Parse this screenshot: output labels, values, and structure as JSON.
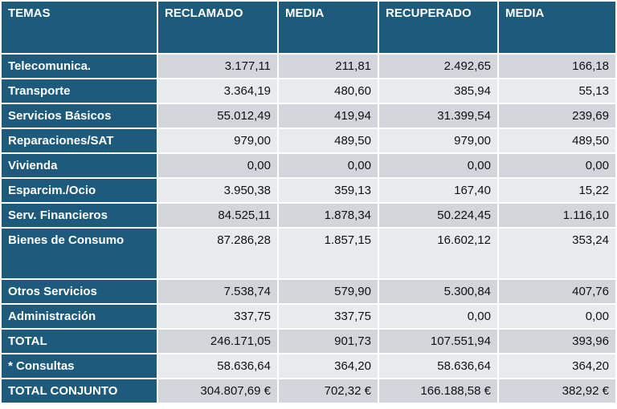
{
  "table": {
    "header": [
      "TEMAS",
      "RECLAMADO",
      "MEDIA",
      "RECUPERADO",
      "MEDIA"
    ],
    "rows": [
      [
        "Telecomunica.",
        "3.177,11",
        "211,81",
        "2.492,65",
        "166,18"
      ],
      [
        "Transporte",
        "3.364,19",
        "480,60",
        "385,94",
        "55,13"
      ],
      [
        "Servicios Básicos",
        "55.012,49",
        "419,94",
        "31.399,54",
        "239,69"
      ],
      [
        "Reparaciones/SAT",
        "979,00",
        "489,50",
        "979,00",
        "489,50"
      ],
      [
        "Vivienda",
        "0,00",
        "0,00",
        "0,00",
        "0,00"
      ],
      [
        "Esparcim./Ocio",
        "3.950,38",
        "359,13",
        "167,40",
        "15,22"
      ],
      [
        "Serv. Financieros",
        "84.525,11",
        "1.878,34",
        "50.224,45",
        "1.116,10"
      ],
      [
        "Bienes de Consumo",
        "87.286,28",
        "1.857,15",
        "16.602,12",
        "353,24"
      ],
      [
        "Otros Servicios",
        "7.538,74",
        "579,90",
        "5.300,84",
        "407,76"
      ],
      [
        "Administración",
        "337,75",
        "337,75",
        "0,00",
        "0,00"
      ],
      [
        "TOTAL",
        "246.171,05",
        "901,73",
        "107.551,94",
        "393,96"
      ],
      [
        "* Consultas",
        "58.636,64",
        "364,20",
        "58.636,64",
        "364,20"
      ],
      [
        "TOTAL CONJUNTO",
        "304.807,69 €",
        "702,32 €",
        "166.188,58 €",
        "382,92 €"
      ]
    ]
  }
}
